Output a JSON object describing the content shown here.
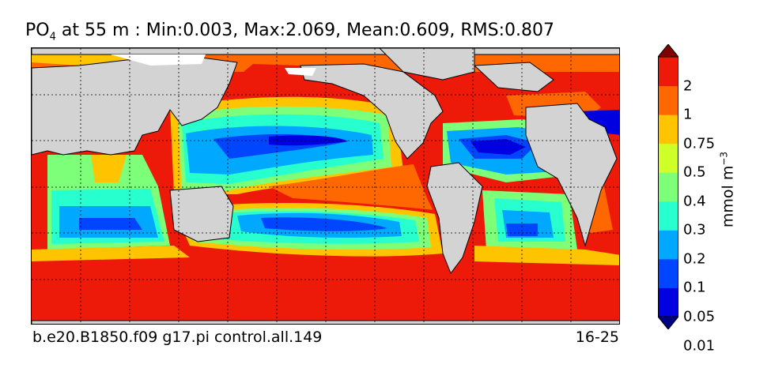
{
  "title": {
    "species": "PO",
    "species_sub": "4",
    "rest": " at 55 m : Min:0.003, Max:2.069, Mean:0.609, RMS:0.807"
  },
  "footer": {
    "left": "b.e20.B1850.f09 g17.pi control.all.149",
    "right": "16-25"
  },
  "colorbar": {
    "unit_base": "mmol m",
    "unit_exp": "−3",
    "ticks": [
      "2",
      "1",
      "0.75",
      "0.5",
      "0.4",
      "0.3",
      "0.2",
      "0.1",
      "0.05",
      "0.01"
    ],
    "colors": [
      "#00007f",
      "#0000e0",
      "#0045ff",
      "#00a8ff",
      "#28ffce",
      "#7dff7a",
      "#ceff28",
      "#ffc400",
      "#ff6700",
      "#ed1a0a",
      "#7f0000"
    ],
    "extend": "both"
  },
  "map": {
    "land_color": "#d3d3d3",
    "ice_color": "#ffffff",
    "grid": "dashed"
  }
}
